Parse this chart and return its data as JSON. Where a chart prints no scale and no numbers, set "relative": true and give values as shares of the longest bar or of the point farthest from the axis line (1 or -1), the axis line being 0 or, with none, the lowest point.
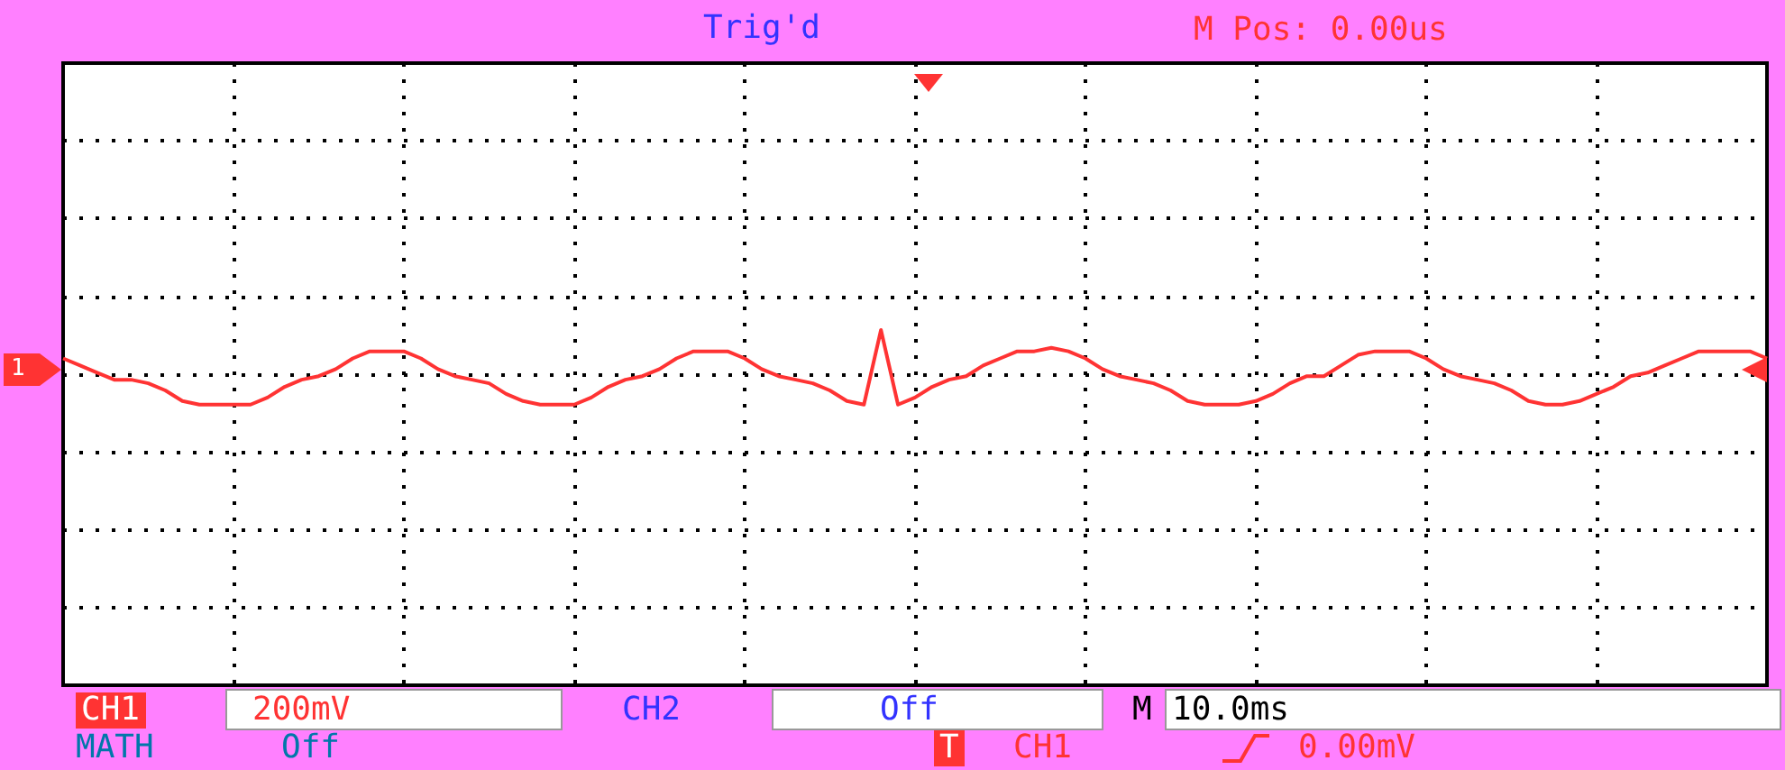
{
  "chart_data": {
    "type": "line",
    "relative": true,
    "grid": true,
    "categories": [
      null,
      null,
      null,
      null,
      null,
      null,
      null,
      null,
      null,
      null,
      null,
      null,
      null,
      null,
      null,
      null,
      null,
      null,
      null,
      null,
      null,
      null,
      null,
      null,
      null,
      null,
      null,
      null,
      null,
      null,
      null,
      null,
      null,
      null,
      null,
      null,
      null,
      null,
      null,
      null,
      null,
      null,
      null,
      null,
      null,
      null,
      null,
      null,
      null,
      null,
      null,
      null,
      null,
      null,
      null,
      null,
      null,
      null,
      null,
      null,
      null,
      null,
      null,
      null,
      null,
      null,
      null,
      null,
      null,
      null,
      null,
      null,
      null,
      null,
      null,
      null,
      null,
      null,
      null,
      null,
      null,
      null,
      null,
      null,
      null,
      null,
      null,
      null,
      null,
      null,
      null,
      null,
      null,
      null,
      null,
      null,
      null,
      null,
      null,
      null,
      null
    ],
    "series": [
      {
        "color": "#ff3333",
        "values": [
          0.92,
          0.9,
          0.88,
          0.86,
          0.86,
          0.85,
          0.83,
          0.8,
          0.79,
          0.79,
          0.79,
          0.79,
          0.81,
          0.84,
          0.86,
          0.87,
          0.89,
          0.92,
          0.94,
          0.94,
          0.94,
          0.92,
          0.89,
          0.87,
          0.86,
          0.85,
          0.82,
          0.8,
          0.79,
          0.79,
          0.79,
          0.81,
          0.84,
          0.86,
          0.87,
          0.89,
          0.92,
          0.94,
          0.94,
          0.94,
          0.92,
          0.89,
          0.87,
          0.86,
          0.85,
          0.83,
          0.8,
          0.79,
          1,
          0.79,
          0.81,
          0.84,
          0.86,
          0.87,
          0.9,
          0.92,
          0.94,
          0.94,
          0.95,
          0.94,
          0.92,
          0.89,
          0.87,
          0.86,
          0.85,
          0.83,
          0.8,
          0.79,
          0.79,
          0.79,
          0.8,
          0.82,
          0.85,
          0.87,
          0.87,
          0.9,
          0.93,
          0.94,
          0.94,
          0.94,
          0.92,
          0.89,
          0.87,
          0.86,
          0.85,
          0.83,
          0.8,
          0.79,
          0.79,
          0.8,
          0.82,
          0.84,
          0.87,
          0.88,
          0.9,
          0.92,
          0.94,
          0.94,
          0.94,
          0.94,
          0.92
        ]
      }
    ],
    "annotations": [
      "Trig'd",
      "M Pos: 0.00us",
      "CH1",
      "200mV",
      "CH2",
      "Off",
      "M",
      "10.0ms",
      "MATH",
      "Off",
      "T",
      "CH1",
      "0.00mV",
      "1"
    ]
  }
}
